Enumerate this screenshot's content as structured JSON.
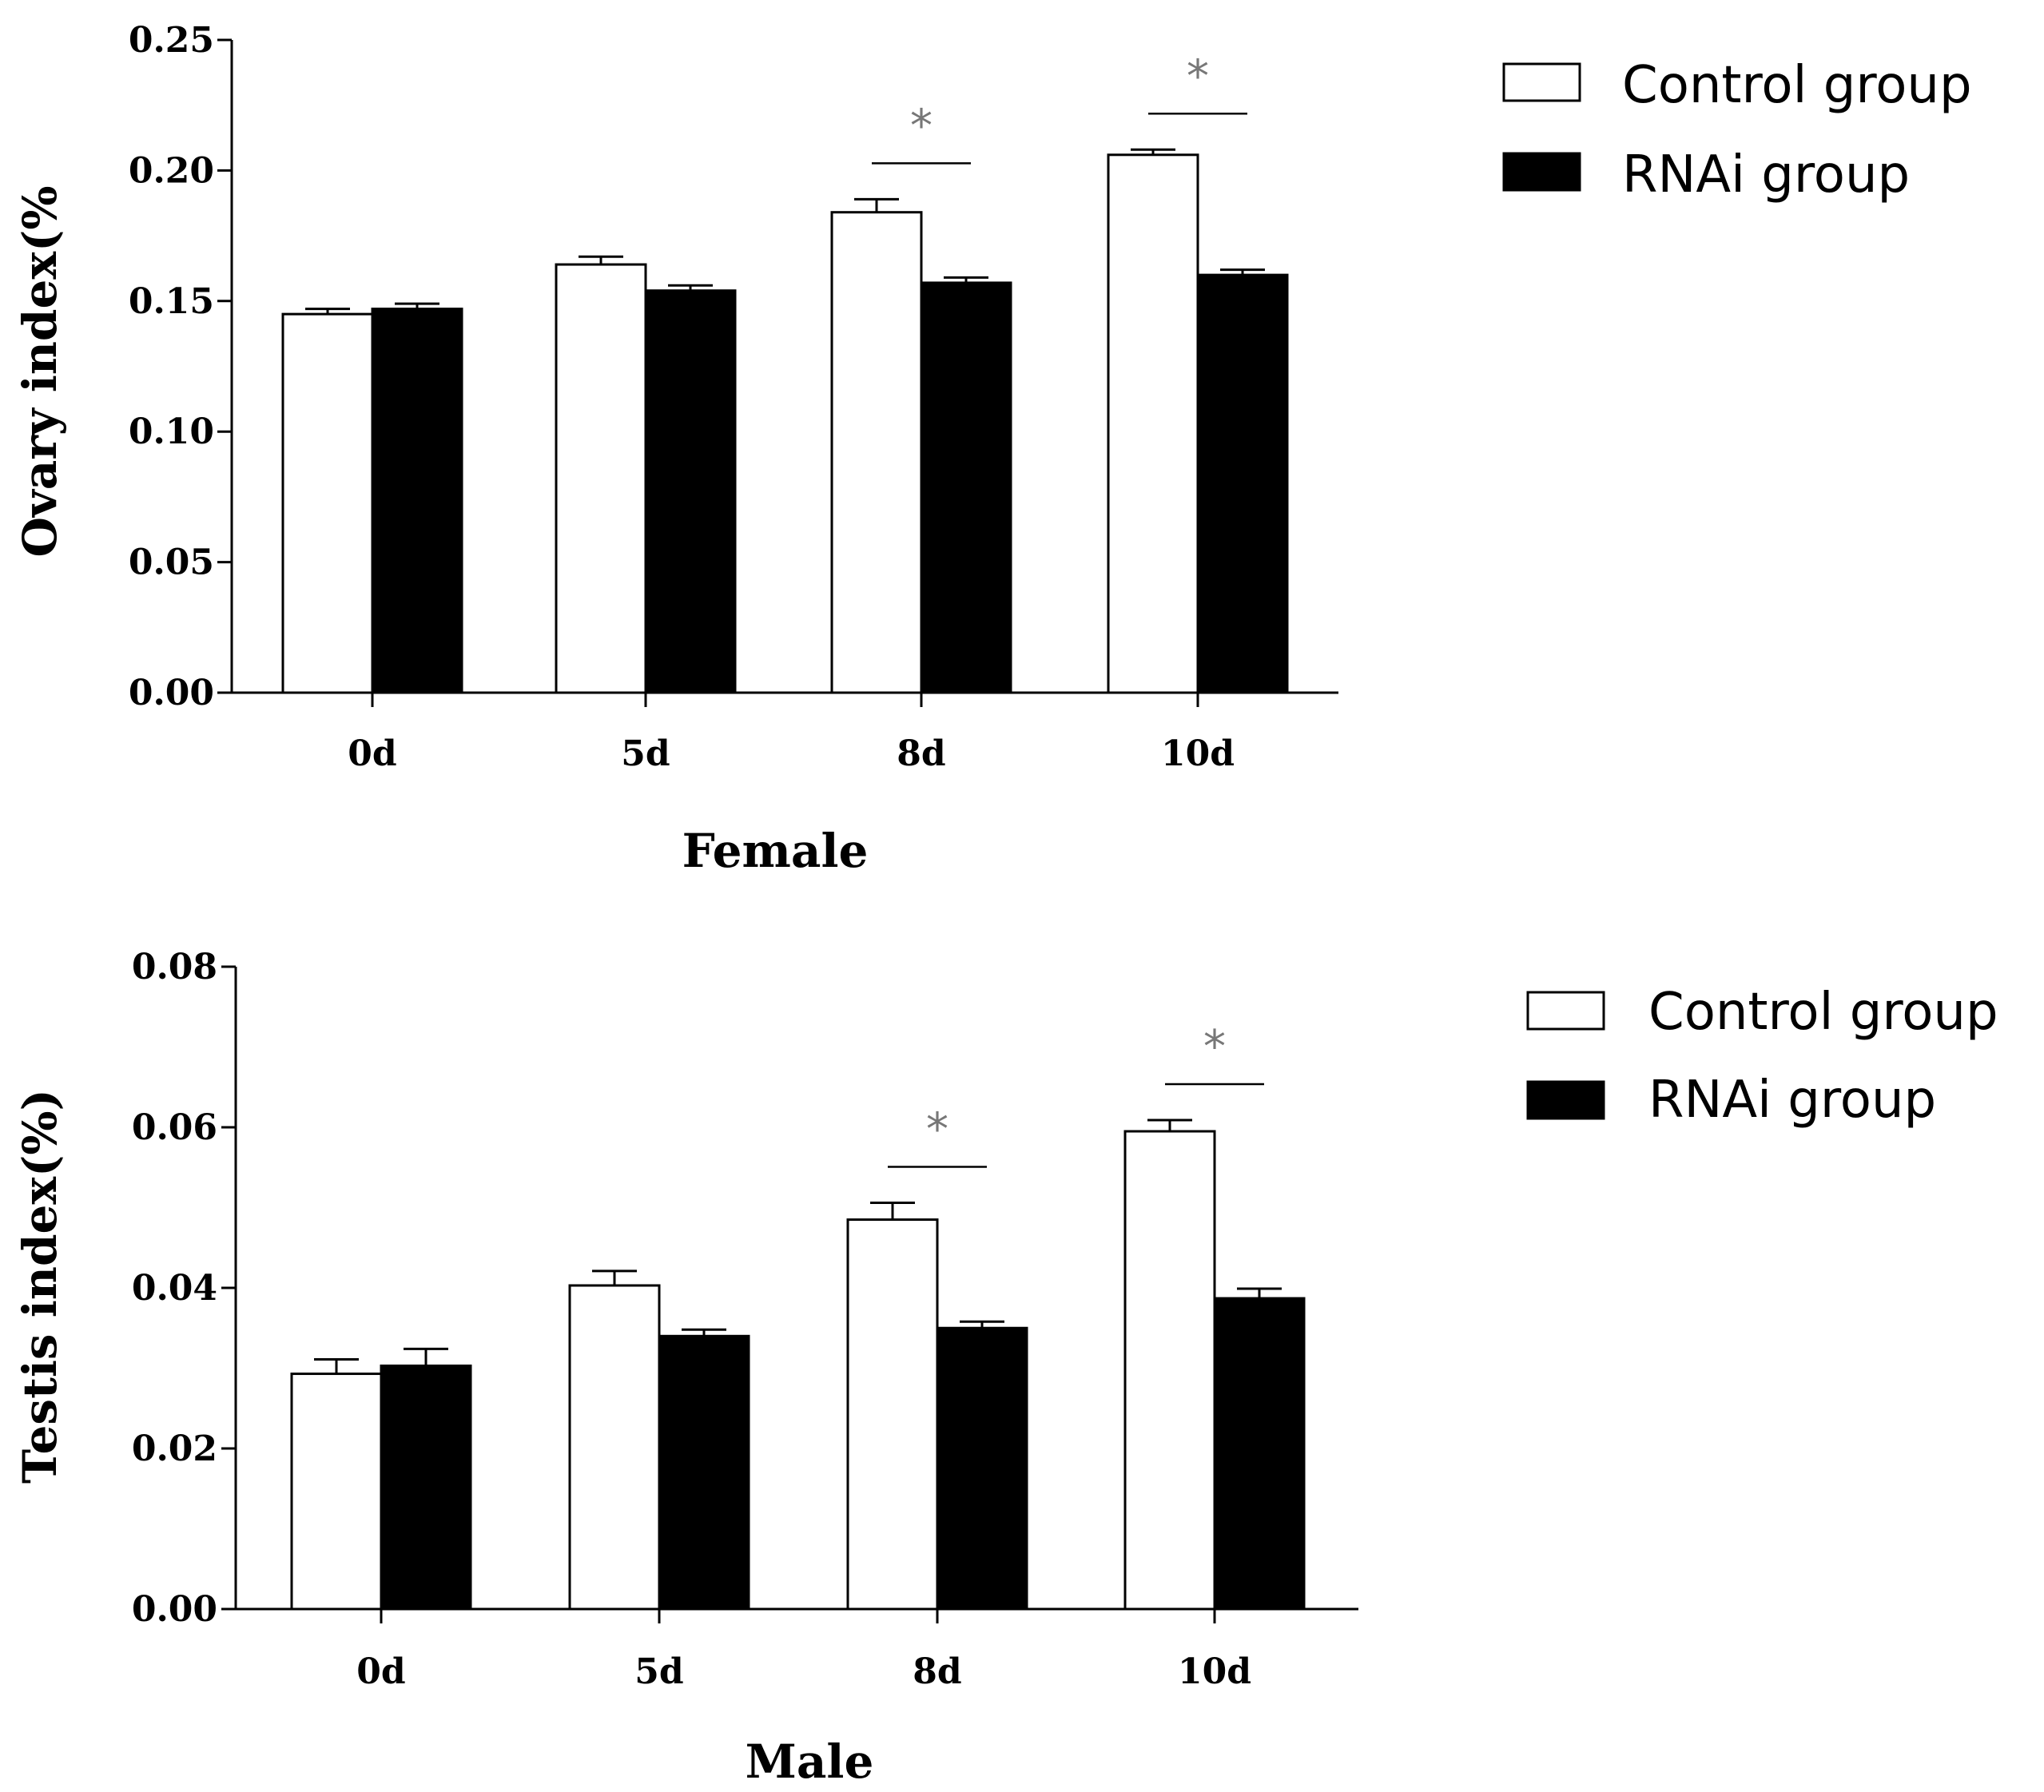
{
  "chart_data": [
    {
      "type": "bar",
      "categories": [
        "0d",
        "5d",
        "8d",
        "10d"
      ],
      "series": [
        {
          "name": "Control group",
          "values": [
            0.145,
            0.164,
            0.184,
            0.206
          ],
          "errors": [
            0.002,
            0.003,
            0.005,
            0.002
          ],
          "color": "#ffffff"
        },
        {
          "name": "RNAi group",
          "values": [
            0.147,
            0.154,
            0.157,
            0.16
          ],
          "errors": [
            0.002,
            0.002,
            0.002,
            0.002
          ],
          "color": "#000000"
        }
      ],
      "significance": [
        {
          "category": "8d",
          "label": "*"
        },
        {
          "category": "10d",
          "label": "*"
        }
      ],
      "ylabel": "Ovary index(%",
      "xlabel": "Female",
      "ylim": [
        0,
        0.25
      ],
      "yticks": [
        "0.00",
        "0.05",
        "0.10",
        "0.15",
        "0.20",
        "0.25"
      ],
      "legend": [
        "Control group",
        "RNAi group"
      ]
    },
    {
      "type": "bar",
      "categories": [
        "0d",
        "5d",
        "8d",
        "10d"
      ],
      "series": [
        {
          "name": "Control group",
          "values": [
            0.0293,
            0.0403,
            0.0485,
            0.0595
          ],
          "errors": [
            0.0018,
            0.0018,
            0.0021,
            0.0014
          ],
          "color": "#ffffff"
        },
        {
          "name": "RNAi group",
          "values": [
            0.0303,
            0.034,
            0.035,
            0.0387
          ],
          "errors": [
            0.0021,
            0.0008,
            0.0008,
            0.0012
          ],
          "color": "#000000"
        }
      ],
      "significance": [
        {
          "category": "8d",
          "label": "*"
        },
        {
          "category": "10d",
          "label": "*"
        }
      ],
      "ylabel": "Testis index(%)",
      "xlabel": "Male",
      "ylim": [
        0,
        0.08
      ],
      "yticks": [
        "0.00",
        "0.02",
        "0.04",
        "0.06",
        "0.08"
      ],
      "legend": [
        "Control group",
        "RNAi group"
      ]
    }
  ]
}
